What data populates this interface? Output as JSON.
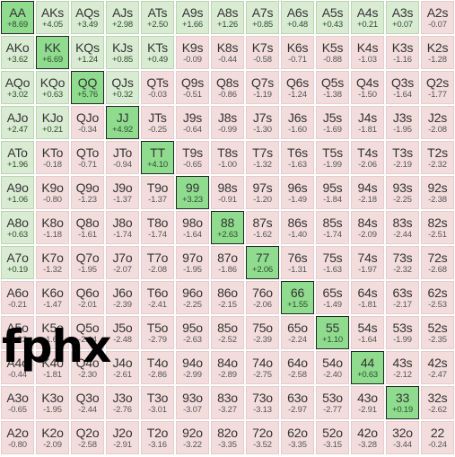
{
  "watermark": "fphx",
  "grid": [
    [
      {
        "h": "AA",
        "v": "+8.69",
        "s": "sel"
      },
      {
        "h": "AKs",
        "v": "+4.05",
        "s": "pos"
      },
      {
        "h": "AQs",
        "v": "+3.49",
        "s": "pos"
      },
      {
        "h": "AJs",
        "v": "+2.98",
        "s": "pos"
      },
      {
        "h": "ATs",
        "v": "+2.50",
        "s": "pos"
      },
      {
        "h": "A9s",
        "v": "+1.66",
        "s": "pos"
      },
      {
        "h": "A8s",
        "v": "+1.26",
        "s": "pos"
      },
      {
        "h": "A7s",
        "v": "+0.85",
        "s": "pos"
      },
      {
        "h": "A6s",
        "v": "+0.48",
        "s": "pos"
      },
      {
        "h": "A5s",
        "v": "+0.43",
        "s": "pos"
      },
      {
        "h": "A4s",
        "v": "+0.21",
        "s": "pos"
      },
      {
        "h": "A3s",
        "v": "+0.07",
        "s": "pos"
      },
      {
        "h": "A2s",
        "v": "-0.07",
        "s": "neg"
      }
    ],
    [
      {
        "h": "AKo",
        "v": "+3.62",
        "s": "pos"
      },
      {
        "h": "KK",
        "v": "+6.69",
        "s": "sel"
      },
      {
        "h": "KQs",
        "v": "+1.24",
        "s": "pos"
      },
      {
        "h": "KJs",
        "v": "+0.85",
        "s": "pos"
      },
      {
        "h": "KTs",
        "v": "+0.49",
        "s": "pos"
      },
      {
        "h": "K9s",
        "v": "-0.09",
        "s": "neg"
      },
      {
        "h": "K8s",
        "v": "-0.44",
        "s": "neg"
      },
      {
        "h": "K7s",
        "v": "-0.58",
        "s": "neg"
      },
      {
        "h": "K6s",
        "v": "-0.71",
        "s": "neg"
      },
      {
        "h": "K5s",
        "v": "-0.88",
        "s": "neg"
      },
      {
        "h": "K4s",
        "v": "-1.03",
        "s": "neg"
      },
      {
        "h": "K3s",
        "v": "-1.16",
        "s": "neg"
      },
      {
        "h": "K2s",
        "v": "-1.28",
        "s": "neg"
      }
    ],
    [
      {
        "h": "AQo",
        "v": "+3.02",
        "s": "pos"
      },
      {
        "h": "KQo",
        "v": "+0.63",
        "s": "pos"
      },
      {
        "h": "QQ",
        "v": "+5.76",
        "s": "sel"
      },
      {
        "h": "QJs",
        "v": "+0.32",
        "s": "pos"
      },
      {
        "h": "QTs",
        "v": "-0.03",
        "s": "neg"
      },
      {
        "h": "Q9s",
        "v": "-0.51",
        "s": "neg"
      },
      {
        "h": "Q8s",
        "v": "-0.86",
        "s": "neg"
      },
      {
        "h": "Q7s",
        "v": "-1.19",
        "s": "neg"
      },
      {
        "h": "Q6s",
        "v": "-1.24",
        "s": "neg"
      },
      {
        "h": "Q5s",
        "v": "-1.38",
        "s": "neg"
      },
      {
        "h": "Q4s",
        "v": "-1.50",
        "s": "neg"
      },
      {
        "h": "Q3s",
        "v": "-1.64",
        "s": "neg"
      },
      {
        "h": "Q2s",
        "v": "-1.77",
        "s": "neg"
      }
    ],
    [
      {
        "h": "AJo",
        "v": "+2.47",
        "s": "pos"
      },
      {
        "h": "KJo",
        "v": "+0.21",
        "s": "pos"
      },
      {
        "h": "QJo",
        "v": "-0.34",
        "s": "neg"
      },
      {
        "h": "JJ",
        "v": "+4.92",
        "s": "sel"
      },
      {
        "h": "JTs",
        "v": "-0.25",
        "s": "neg"
      },
      {
        "h": "J9s",
        "v": "-0.64",
        "s": "neg"
      },
      {
        "h": "J8s",
        "v": "-0.99",
        "s": "neg"
      },
      {
        "h": "J7s",
        "v": "-1.30",
        "s": "neg"
      },
      {
        "h": "J6s",
        "v": "-1.60",
        "s": "neg"
      },
      {
        "h": "J5s",
        "v": "-1.69",
        "s": "neg"
      },
      {
        "h": "J4s",
        "v": "-1.81",
        "s": "neg"
      },
      {
        "h": "J3s",
        "v": "-1.95",
        "s": "neg"
      },
      {
        "h": "J2s",
        "v": "-2.08",
        "s": "neg"
      }
    ],
    [
      {
        "h": "ATo",
        "v": "+1.96",
        "s": "pos"
      },
      {
        "h": "KTo",
        "v": "-0.18",
        "s": "neg"
      },
      {
        "h": "QTo",
        "v": "-0.71",
        "s": "neg"
      },
      {
        "h": "JTo",
        "v": "-0.94",
        "s": "neg"
      },
      {
        "h": "TT",
        "v": "+4.10",
        "s": "sel"
      },
      {
        "h": "T9s",
        "v": "-0.65",
        "s": "neg"
      },
      {
        "h": "T8s",
        "v": "-1.00",
        "s": "neg"
      },
      {
        "h": "T7s",
        "v": "-1.32",
        "s": "neg"
      },
      {
        "h": "T6s",
        "v": "-1.63",
        "s": "neg"
      },
      {
        "h": "T5s",
        "v": "-1.99",
        "s": "neg"
      },
      {
        "h": "T4s",
        "v": "-2.06",
        "s": "neg"
      },
      {
        "h": "T3s",
        "v": "-2.19",
        "s": "neg"
      },
      {
        "h": "T2s",
        "v": "-2.32",
        "s": "neg"
      }
    ],
    [
      {
        "h": "A9o",
        "v": "+1.06",
        "s": "pos"
      },
      {
        "h": "K9o",
        "v": "-0.80",
        "s": "neg"
      },
      {
        "h": "Q9o",
        "v": "-1.23",
        "s": "neg"
      },
      {
        "h": "J9o",
        "v": "-1.37",
        "s": "neg"
      },
      {
        "h": "T9o",
        "v": "-1.37",
        "s": "neg"
      },
      {
        "h": "99",
        "v": "+3.23",
        "s": "sel"
      },
      {
        "h": "98s",
        "v": "-0.91",
        "s": "neg"
      },
      {
        "h": "97s",
        "v": "-1.20",
        "s": "neg"
      },
      {
        "h": "96s",
        "v": "-1.49",
        "s": "neg"
      },
      {
        "h": "95s",
        "v": "-1.84",
        "s": "neg"
      },
      {
        "h": "94s",
        "v": "-2.18",
        "s": "neg"
      },
      {
        "h": "93s",
        "v": "-2.25",
        "s": "neg"
      },
      {
        "h": "92s",
        "v": "-2.38",
        "s": "neg"
      }
    ],
    [
      {
        "h": "A8o",
        "v": "+0.63",
        "s": "pos"
      },
      {
        "h": "K8o",
        "v": "-1.18",
        "s": "neg"
      },
      {
        "h": "Q8o",
        "v": "-1.61",
        "s": "neg"
      },
      {
        "h": "J8o",
        "v": "-1.74",
        "s": "neg"
      },
      {
        "h": "T8o",
        "v": "-1.74",
        "s": "neg"
      },
      {
        "h": "98o",
        "v": "-1.64",
        "s": "neg"
      },
      {
        "h": "88",
        "v": "+2.63",
        "s": "sel"
      },
      {
        "h": "87s",
        "v": "-1.62",
        "s": "neg"
      },
      {
        "h": "86s",
        "v": "-1.40",
        "s": "neg"
      },
      {
        "h": "85s",
        "v": "-1.74",
        "s": "neg"
      },
      {
        "h": "84s",
        "v": "-2.09",
        "s": "neg"
      },
      {
        "h": "83s",
        "v": "-2.44",
        "s": "neg"
      },
      {
        "h": "82s",
        "v": "-2.51",
        "s": "neg"
      }
    ],
    [
      {
        "h": "A7o",
        "v": "+0.19",
        "s": "pos"
      },
      {
        "h": "K7o",
        "v": "-1.32",
        "s": "neg"
      },
      {
        "h": "Q7o",
        "v": "-1.95",
        "s": "neg"
      },
      {
        "h": "J7o",
        "v": "-2.07",
        "s": "neg"
      },
      {
        "h": "T7o",
        "v": "-2.08",
        "s": "neg"
      },
      {
        "h": "97o",
        "v": "-1.95",
        "s": "neg"
      },
      {
        "h": "87o",
        "v": "-1.86",
        "s": "neg"
      },
      {
        "h": "77",
        "v": "+2.06",
        "s": "sel"
      },
      {
        "h": "76s",
        "v": "-1.31",
        "s": "neg"
      },
      {
        "h": "75s",
        "v": "-1.63",
        "s": "neg"
      },
      {
        "h": "74s",
        "v": "-1.97",
        "s": "neg"
      },
      {
        "h": "73s",
        "v": "-2.32",
        "s": "neg"
      },
      {
        "h": "72s",
        "v": "-2.68",
        "s": "neg"
      }
    ],
    [
      {
        "h": "A6o",
        "v": "-0.21",
        "s": "neg"
      },
      {
        "h": "K6o",
        "v": "-1.47",
        "s": "neg"
      },
      {
        "h": "Q6o",
        "v": "-2.01",
        "s": "neg"
      },
      {
        "h": "J6o",
        "v": "-2.39",
        "s": "neg"
      },
      {
        "h": "T6o",
        "v": "-2.41",
        "s": "neg"
      },
      {
        "h": "96o",
        "v": "-2.25",
        "s": "neg"
      },
      {
        "h": "86o",
        "v": "-2.15",
        "s": "neg"
      },
      {
        "h": "76o",
        "v": "-2.06",
        "s": "neg"
      },
      {
        "h": "66",
        "v": "+1.55",
        "s": "sel"
      },
      {
        "h": "65s",
        "v": "-1.49",
        "s": "neg"
      },
      {
        "h": "64s",
        "v": "-1.81",
        "s": "neg"
      },
      {
        "h": "63s",
        "v": "-2.17",
        "s": "neg"
      },
      {
        "h": "62s",
        "v": "-2.53",
        "s": "neg"
      }
    ],
    [
      {
        "h": "A5o",
        "v": "-0.23",
        "s": "neg"
      },
      {
        "h": "K5o",
        "v": "-1.65",
        "s": "neg"
      },
      {
        "h": "Q5o",
        "v": "-2.14",
        "s": "neg"
      },
      {
        "h": "J5o",
        "v": "-2.48",
        "s": "neg"
      },
      {
        "h": "T5o",
        "v": "-2.79",
        "s": "neg"
      },
      {
        "h": "95o",
        "v": "-2.63",
        "s": "neg"
      },
      {
        "h": "85o",
        "v": "-2.52",
        "s": "neg"
      },
      {
        "h": "75o",
        "v": "-2.39",
        "s": "neg"
      },
      {
        "h": "65o",
        "v": "-2.24",
        "s": "neg"
      },
      {
        "h": "55",
        "v": "+1.10",
        "s": "sel"
      },
      {
        "h": "54s",
        "v": "-1.64",
        "s": "neg"
      },
      {
        "h": "53s",
        "v": "-1.99",
        "s": "neg"
      },
      {
        "h": "52s",
        "v": "-2.35",
        "s": "neg"
      }
    ],
    [
      {
        "h": "A4o",
        "v": "-0.44",
        "s": "neg"
      },
      {
        "h": "K4o",
        "v": "-1.81",
        "s": "neg"
      },
      {
        "h": "Q4o",
        "v": "-2.30",
        "s": "neg"
      },
      {
        "h": "J4o",
        "v": "-2.61",
        "s": "neg"
      },
      {
        "h": "T4o",
        "v": "-2.86",
        "s": "neg"
      },
      {
        "h": "94o",
        "v": "-2.99",
        "s": "neg"
      },
      {
        "h": "84o",
        "v": "-2.89",
        "s": "neg"
      },
      {
        "h": "74o",
        "v": "-2.75",
        "s": "neg"
      },
      {
        "h": "64o",
        "v": "-2.58",
        "s": "neg"
      },
      {
        "h": "54o",
        "v": "-2.40",
        "s": "neg"
      },
      {
        "h": "44",
        "v": "+0.63",
        "s": "sel"
      },
      {
        "h": "43s",
        "v": "-2.12",
        "s": "neg"
      },
      {
        "h": "42s",
        "v": "-2.47",
        "s": "neg"
      }
    ],
    [
      {
        "h": "A3o",
        "v": "-0.65",
        "s": "neg"
      },
      {
        "h": "K3o",
        "v": "-1.95",
        "s": "neg"
      },
      {
        "h": "Q3o",
        "v": "-2.44",
        "s": "neg"
      },
      {
        "h": "J3o",
        "v": "-2.76",
        "s": "neg"
      },
      {
        "h": "T3o",
        "v": "-3.01",
        "s": "neg"
      },
      {
        "h": "93o",
        "v": "-3.07",
        "s": "neg"
      },
      {
        "h": "83o",
        "v": "-3.27",
        "s": "neg"
      },
      {
        "h": "73o",
        "v": "-3.13",
        "s": "neg"
      },
      {
        "h": "63o",
        "v": "-2.97",
        "s": "neg"
      },
      {
        "h": "53o",
        "v": "-2.77",
        "s": "neg"
      },
      {
        "h": "43o",
        "v": "-2.91",
        "s": "neg"
      },
      {
        "h": "33",
        "v": "+0.19",
        "s": "sel"
      },
      {
        "h": "32s",
        "v": "-2.62",
        "s": "neg"
      }
    ],
    [
      {
        "h": "A2o",
        "v": "-0.80",
        "s": "neg"
      },
      {
        "h": "K2o",
        "v": "-2.09",
        "s": "neg"
      },
      {
        "h": "Q2o",
        "v": "-2.58",
        "s": "neg"
      },
      {
        "h": "J2o",
        "v": "-2.91",
        "s": "neg"
      },
      {
        "h": "T2o",
        "v": "-3.16",
        "s": "neg"
      },
      {
        "h": "92o",
        "v": "-3.22",
        "s": "neg"
      },
      {
        "h": "82o",
        "v": "-3.35",
        "s": "neg"
      },
      {
        "h": "72o",
        "v": "-3.52",
        "s": "neg"
      },
      {
        "h": "62o",
        "v": "-3.35",
        "s": "neg"
      },
      {
        "h": "52o",
        "v": "-3.15",
        "s": "neg"
      },
      {
        "h": "42o",
        "v": "-3.28",
        "s": "neg"
      },
      {
        "h": "32o",
        "v": "-3.44",
        "s": "neg"
      },
      {
        "h": "22",
        "v": "-0.24",
        "s": "neg"
      }
    ]
  ]
}
